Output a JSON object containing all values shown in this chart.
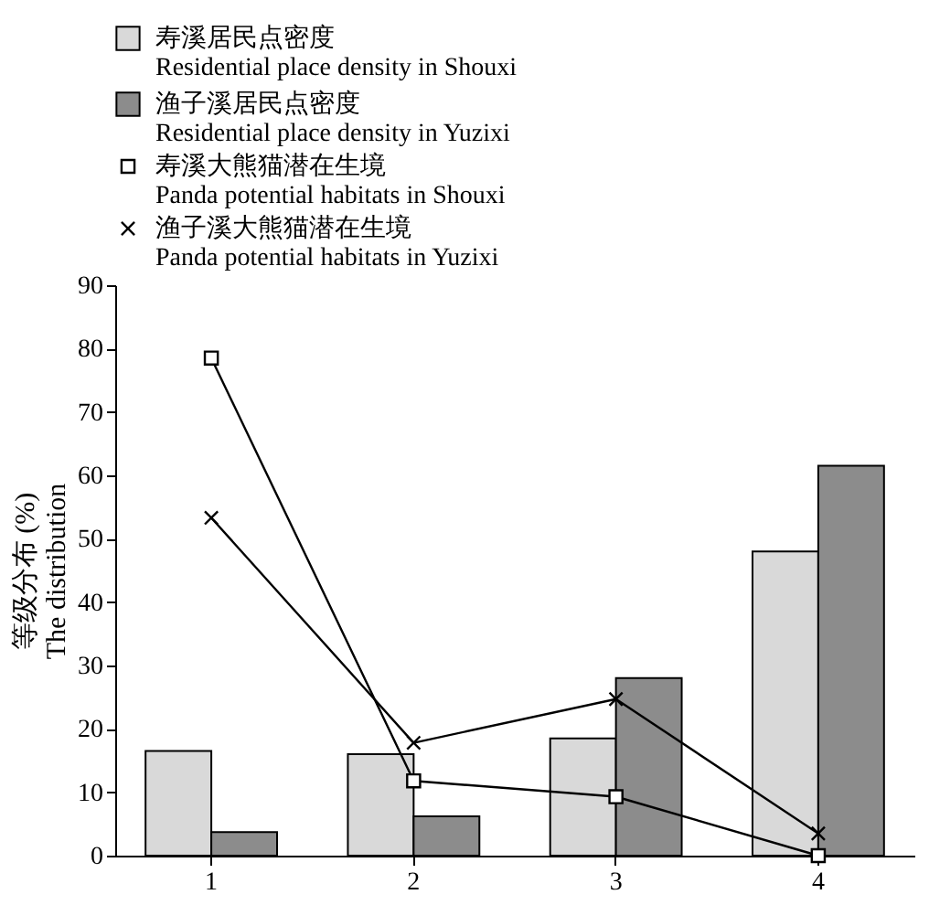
{
  "chart_data": {
    "type": "bar",
    "ylabel": "等级分布 (%)\nThe distribution",
    "categories": [
      "1",
      "2",
      "3",
      "4"
    ],
    "ylim": [
      0,
      90
    ],
    "yticks": [
      0,
      10,
      20,
      30,
      40,
      50,
      60,
      70,
      80,
      90
    ],
    "grid": false,
    "legend": "top",
    "series": [
      {
        "name": "寿溪居民点密度\nResidential place density in Shouxi",
        "color": "#d9d9d9",
        "values": [
          16.5,
          16,
          18.5,
          48
        ]
      },
      {
        "name": "渔子溪居民点密度\nResidential place density in Yuzixi",
        "color": "#8c8c8c",
        "values": [
          3.7,
          6.2,
          28,
          61.5
        ]
      },
      {
        "name": "寿溪大熊猫潜在生境\nPanda potential habitats in Shouxi",
        "type": "line",
        "marker": "square",
        "color": "#000000",
        "values": [
          78.5,
          11.8,
          9.3,
          0
        ]
      },
      {
        "name": "渔子溪大熊猫潜在生境\nPanda potential habitats in Yuzixi",
        "type": "line",
        "marker": "cross",
        "color": "#000000",
        "values": [
          53.3,
          17.8,
          24.7,
          3.5
        ]
      }
    ]
  }
}
